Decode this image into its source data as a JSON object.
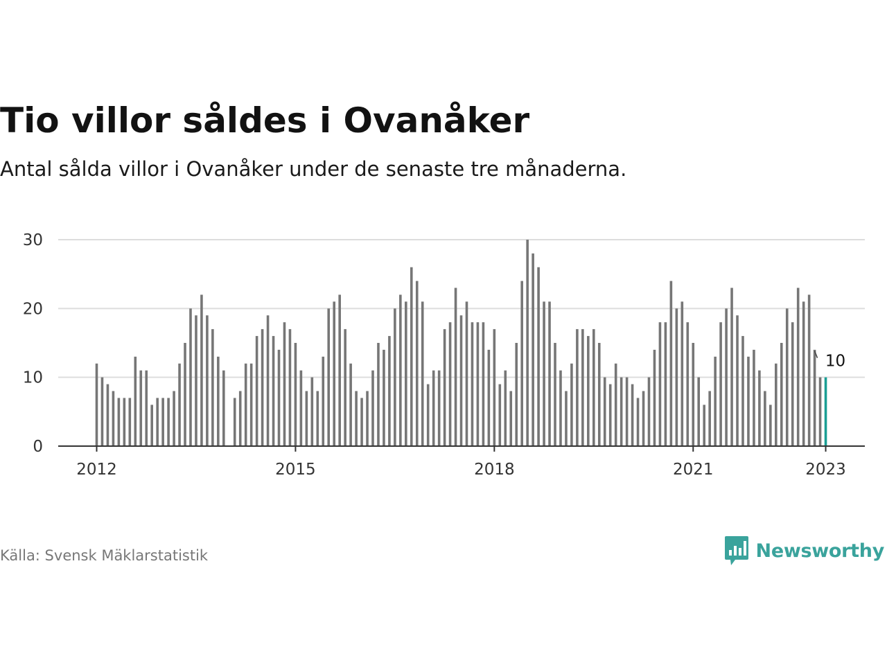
{
  "header": {
    "title": "Tio villor såldes i Ovanåker",
    "subtitle": "Antal sålda villor i Ovanåker under de senaste tre månaderna."
  },
  "footer": {
    "source": "Källa: Svensk Mäklarstatistik",
    "brand": "Newsworthy"
  },
  "colors": {
    "bar": "#767676",
    "highlight": "#1a9e94",
    "grid": "#dddddd",
    "axis": "#333333",
    "brand": "#3aa39c"
  },
  "chart_data": {
    "type": "bar",
    "x_start": "2012-01",
    "x_end": "2023-01",
    "frequency": "monthly",
    "values": [
      12,
      10,
      9,
      8,
      7,
      7,
      7,
      13,
      11,
      11,
      6,
      7,
      7,
      7,
      8,
      12,
      15,
      20,
      19,
      22,
      19,
      17,
      13,
      11,
      null,
      7,
      8,
      12,
      12,
      16,
      17,
      19,
      16,
      14,
      18,
      17,
      15,
      11,
      8,
      10,
      8,
      13,
      20,
      21,
      22,
      17,
      12,
      8,
      7,
      8,
      11,
      15,
      14,
      16,
      20,
      22,
      21,
      26,
      24,
      21,
      9,
      11,
      11,
      17,
      18,
      23,
      19,
      21,
      18,
      18,
      18,
      14,
      17,
      9,
      11,
      8,
      15,
      24,
      30,
      28,
      26,
      21,
      21,
      15,
      11,
      8,
      12,
      17,
      17,
      16,
      17,
      15,
      10,
      9,
      12,
      10,
      10,
      9,
      7,
      8,
      10,
      14,
      18,
      18,
      24,
      20,
      21,
      18,
      15,
      10,
      6,
      8,
      13,
      18,
      20,
      23,
      19,
      16,
      13,
      14,
      11,
      8,
      6,
      12,
      15,
      20,
      18,
      23,
      21,
      22,
      14,
      10,
      10
    ],
    "highlight_last": true,
    "last_label": "10",
    "x_ticks": [
      "2012",
      "2015",
      "2018",
      "2021",
      "2023"
    ],
    "x_tick_positions": [
      0,
      36,
      72,
      108,
      132
    ],
    "y_ticks": [
      "0",
      "10",
      "20",
      "30"
    ],
    "ylim": [
      0,
      30
    ],
    "grid": true,
    "legend": "none",
    "title": "Tio villor såldes i Ovanåker",
    "xlabel": "",
    "ylabel": ""
  }
}
